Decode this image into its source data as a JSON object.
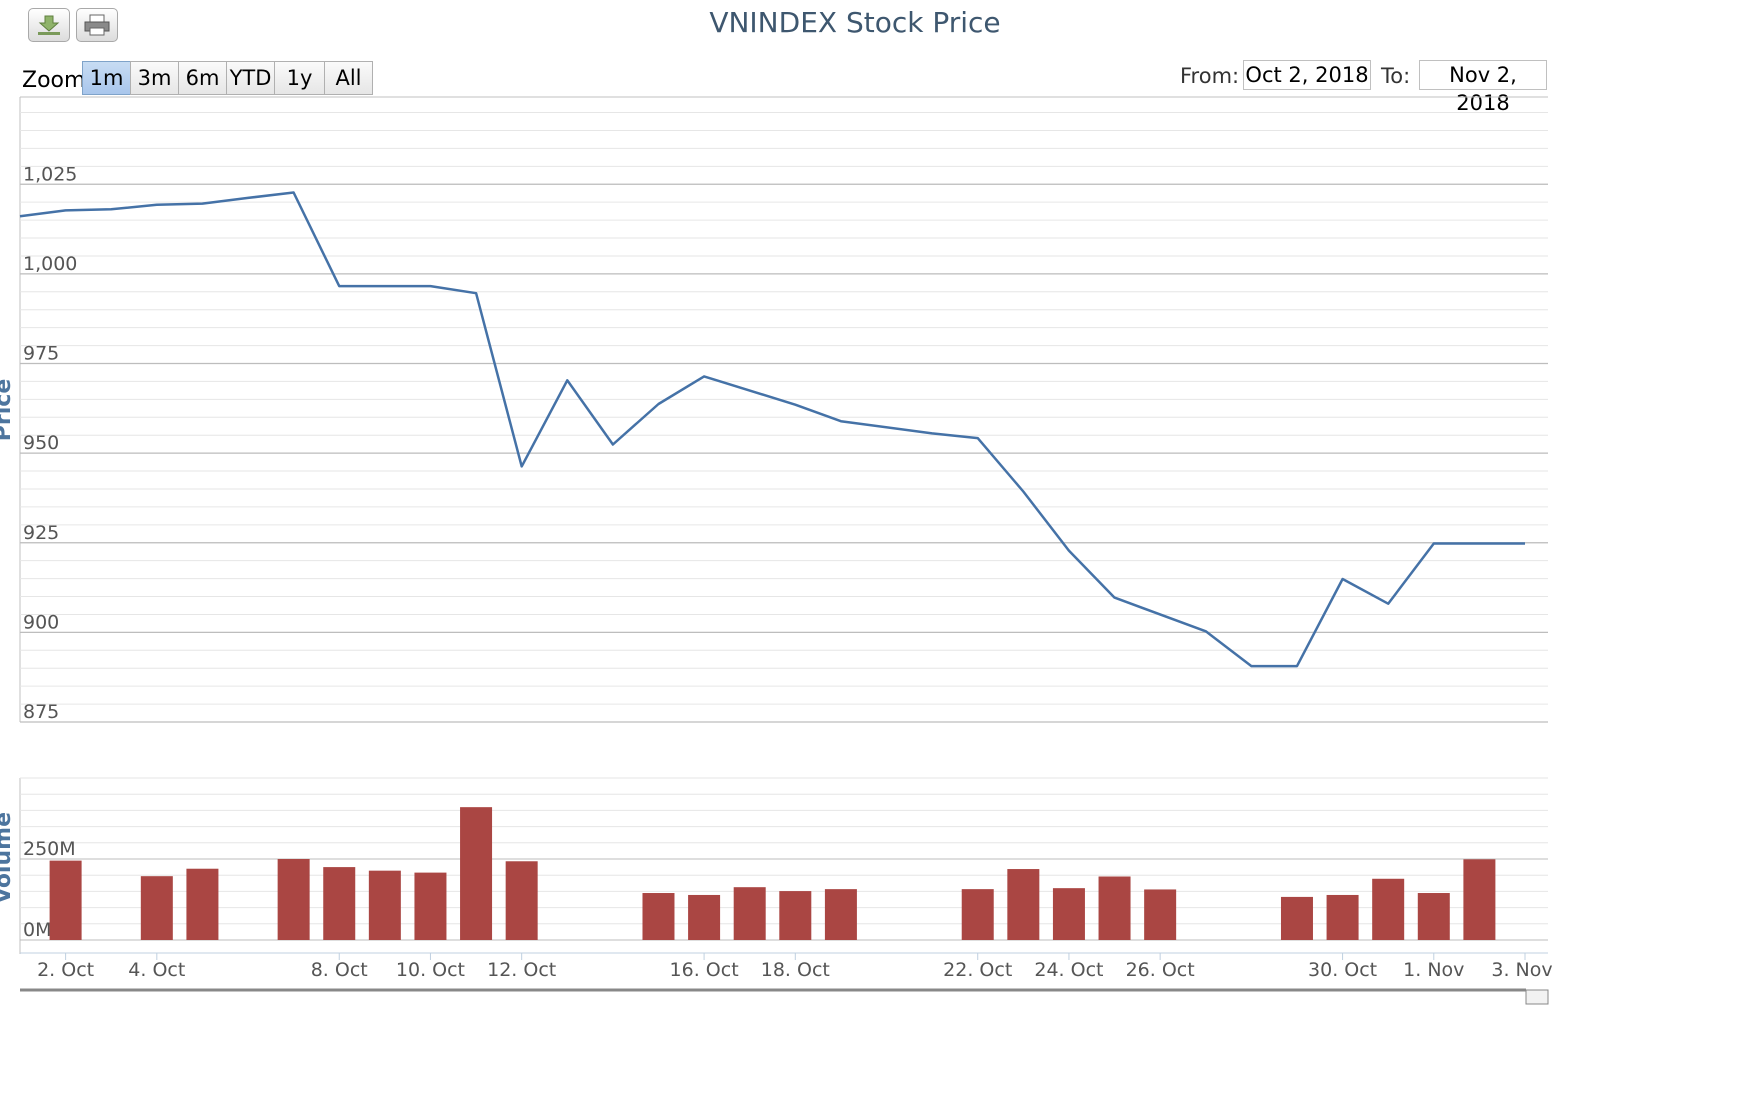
{
  "toolbar": {
    "download_icon": "download-icon",
    "print_icon": "print-icon"
  },
  "title": "VNINDEX Stock Price",
  "zoom": {
    "label": "Zoom",
    "buttons": [
      "1m",
      "3m",
      "6m",
      "YTD",
      "1y",
      "All"
    ],
    "selected": "1m"
  },
  "range": {
    "from_label": "From:",
    "from_value": "Oct 2, 2018",
    "to_label": "To:",
    "to_value": "Nov 2, 2018"
  },
  "colors": {
    "line": "#4572a7",
    "bar": "#aa4643",
    "title": "#3e576f",
    "grid": "#c0c0c0"
  },
  "chart_data": {
    "type": "line",
    "title": "VNINDEX Stock Price",
    "price_axis": {
      "label": "Price",
      "ticks": [
        "1,025",
        "1,000",
        "975",
        "950",
        "925",
        "900",
        "875"
      ],
      "ylim": [
        875,
        1030
      ]
    },
    "volume_axis": {
      "label": "Volume",
      "ticks": [
        "250M",
        "0M"
      ]
    },
    "x_tick_labels": [
      "2. Oct",
      "4. Oct",
      "8. Oct",
      "10. Oct",
      "12. Oct",
      "16. Oct",
      "18. Oct",
      "22. Oct",
      "24. Oct",
      "26. Oct",
      "30. Oct",
      "1. Nov",
      "3. Nov"
    ],
    "price_series": {
      "name": "Price",
      "x": [
        "2018-10-01",
        "2018-10-02",
        "2018-10-03",
        "2018-10-04",
        "2018-10-05",
        "2018-10-06",
        "2018-10-07",
        "2018-10-08",
        "2018-10-10",
        "2018-10-11",
        "2018-10-12",
        "2018-10-13",
        "2018-10-14",
        "2018-10-15",
        "2018-10-16",
        "2018-10-18",
        "2018-10-19",
        "2018-10-21",
        "2018-10-22",
        "2018-10-23",
        "2018-10-24",
        "2018-10-25",
        "2018-10-27",
        "2018-10-28",
        "2018-10-29",
        "2018-10-30",
        "2018-10-31",
        "2018-11-01",
        "2018-11-03"
      ],
      "values": [
        1016.1,
        1017.7,
        1018.0,
        1019.3,
        1019.6,
        1021.2,
        1022.7,
        996.6,
        996.6,
        994.6,
        946.3,
        970.3,
        952.4,
        963.7,
        971.4,
        963.5,
        958.9,
        955.5,
        954.2,
        939.3,
        922.8,
        909.7,
        900.3,
        890.6,
        890.6,
        914.9,
        908.0,
        924.8,
        924.8
      ]
    },
    "volume_series": {
      "name": "Volume",
      "x": [
        "2018-10-02",
        "2018-10-04",
        "2018-10-05",
        "2018-10-07",
        "2018-10-08",
        "2018-10-09",
        "2018-10-10",
        "2018-10-11",
        "2018-10-12",
        "2018-10-15",
        "2018-10-16",
        "2018-10-17",
        "2018-10-18",
        "2018-10-19",
        "2018-10-22",
        "2018-10-23",
        "2018-10-24",
        "2018-10-25",
        "2018-10-26",
        "2018-10-29",
        "2018-10-30",
        "2018-10-31",
        "2018-11-01",
        "2018-11-02"
      ],
      "values": [
        245,
        197,
        220,
        250,
        225,
        214,
        208,
        410,
        243,
        145,
        139,
        163,
        151,
        157,
        157,
        219,
        160,
        196,
        156,
        133,
        139,
        189,
        145,
        249
      ]
    }
  }
}
